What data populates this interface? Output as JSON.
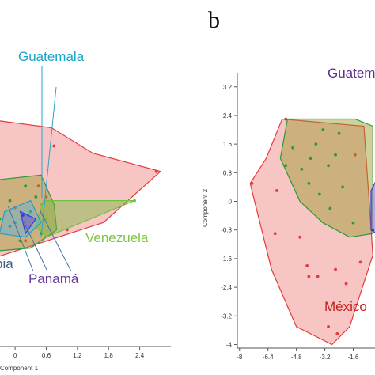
{
  "chart_data": [
    {
      "type": "scatter",
      "xlabel": "Component 1",
      "xticks": [
        "0",
        "0.6",
        "1.2",
        "1.8",
        "2.4"
      ],
      "xtick_values": [
        0,
        0.6,
        1.2,
        1.8,
        2.4
      ],
      "xlim": [
        -0.9,
        3.0
      ],
      "ylim": [
        -4.0,
        4.2
      ],
      "labels": [
        {
          "text": "Guatemala",
          "color": "#1aa3c9"
        },
        {
          "text": "Venezuela",
          "color": "#7fc441"
        },
        {
          "text": "Panamá",
          "color": "#6a3aa0"
        },
        {
          "text": "bia",
          "color": "#3d5a8a"
        }
      ],
      "series": [
        {
          "color": "#e33b3b",
          "fill": "rgba(235,90,90,0.35)",
          "hull": [
            [
              -0.9,
              2.3
            ],
            [
              0.7,
              2.0
            ],
            [
              1.5,
              1.3
            ],
            [
              2.8,
              0.8
            ],
            [
              1.7,
              -0.6
            ],
            [
              -0.9,
              -1.8
            ]
          ],
          "points": [
            [
              0.45,
              0.4
            ],
            [
              0.0,
              -0.2
            ],
            [
              0.6,
              -0.5
            ],
            [
              1.0,
              -0.8
            ],
            [
              -0.5,
              -0.9
            ],
            [
              0.2,
              -1.1
            ],
            [
              0.75,
              1.5
            ],
            [
              0.6,
              0.1
            ],
            [
              2.72,
              0.8
            ],
            [
              -0.7,
              0.0
            ]
          ]
        },
        {
          "color": "#2a9a3a",
          "fill": "rgba(150,150,40,0.45)",
          "hull": [
            [
              -0.8,
              0.5
            ],
            [
              0.5,
              0.7
            ],
            [
              0.75,
              -0.1
            ],
            [
              0.8,
              -0.8
            ],
            [
              0.3,
              -1.3
            ],
            [
              -0.5,
              -1.4
            ],
            [
              -0.9,
              -1.0
            ]
          ],
          "points": [
            [
              -0.1,
              0.0
            ],
            [
              0.2,
              0.4
            ],
            [
              -0.6,
              -0.2
            ],
            [
              0.0,
              -0.6
            ],
            [
              0.3,
              -0.3
            ],
            [
              0.5,
              -0.9
            ],
            [
              -0.3,
              -0.5
            ],
            [
              0.1,
              -1.1
            ],
            [
              -0.7,
              -0.7
            ],
            [
              0.4,
              0.1
            ]
          ]
        },
        {
          "color": "#6fc13f",
          "fill": "rgba(120,185,60,0.45)",
          "hull": [
            [
              0.55,
              0.0
            ],
            [
              2.3,
              0.0
            ],
            [
              0.6,
              -1.0
            ],
            [
              0.4,
              -0.7
            ]
          ],
          "points": [
            [
              2.3,
              0.0
            ],
            [
              0.6,
              -0.5
            ],
            [
              0.5,
              -0.1
            ]
          ]
        },
        {
          "color": "#1fa0c8",
          "fill": "rgba(90,180,220,0.45)",
          "hull": [
            [
              -0.2,
              -0.3
            ],
            [
              0.3,
              0.0
            ],
            [
              0.5,
              -0.6
            ],
            [
              0.2,
              -1.0
            ],
            [
              -0.3,
              -0.9
            ]
          ],
          "points": [
            [
              0.25,
              -0.4
            ],
            [
              -0.1,
              -0.7
            ]
          ]
        },
        {
          "color": "#3b3bd1",
          "fill": "rgba(110,80,200,0.5)",
          "hull": [
            [
              0.1,
              -0.3
            ],
            [
              0.4,
              -0.5
            ],
            [
              0.2,
              -0.9
            ]
          ],
          "points": [
            [
              0.15,
              -0.4
            ]
          ]
        }
      ]
    },
    {
      "type": "scatter",
      "panel_label": "b",
      "xlabel": "",
      "ylabel": "Component 2",
      "xticks": [
        "-8",
        "-6.4",
        "-4.8",
        "-3.2",
        "-1.6"
      ],
      "xtick_values": [
        -8,
        -6.4,
        -4.8,
        -3.2,
        -1.6
      ],
      "yticks": [
        "3.2",
        "2.4",
        "1.6",
        "0.8",
        "0",
        "-0.8",
        "-1.6",
        "-2.4",
        "-3.2",
        "-4"
      ],
      "ytick_values": [
        3.2,
        2.4,
        1.6,
        0.8,
        0,
        -0.8,
        -1.6,
        -2.4,
        -3.2,
        -4
      ],
      "xlim": [
        -8.3,
        -0.2
      ],
      "ylim": [
        -4.1,
        4.3
      ],
      "labels": [
        {
          "text": "Guatem",
          "color": "#5b2d90"
        },
        {
          "text": "México",
          "color": "#c0201d"
        }
      ],
      "series": [
        {
          "color": "#e33b3b",
          "fill": "rgba(235,90,90,0.35)",
          "hull": [
            [
              -7.4,
              0.5
            ],
            [
              -6.5,
              1.2
            ],
            [
              -5.6,
              2.3
            ],
            [
              -1.0,
              2.1
            ],
            [
              -0.5,
              -1.5
            ],
            [
              -1.8,
              -3.5
            ],
            [
              -2.8,
              -4.0
            ],
            [
              -4.8,
              -3.5
            ],
            [
              -6.2,
              -1.9
            ]
          ],
          "points": [
            [
              -5.4,
              2.3
            ],
            [
              -5.9,
              0.3
            ],
            [
              -6.0,
              -0.9
            ],
            [
              -4.6,
              -1.0
            ],
            [
              -3.6,
              -2.1
            ],
            [
              -2.6,
              -1.9
            ],
            [
              -3.0,
              -3.5
            ],
            [
              -4.2,
              -1.8
            ],
            [
              -2.0,
              -2.3
            ],
            [
              -1.5,
              1.3
            ],
            [
              -1.2,
              -1.7
            ],
            [
              -7.3,
              0.5
            ],
            [
              -4.1,
              -2.1
            ],
            [
              -2.5,
              -3.7
            ]
          ]
        },
        {
          "color": "#2a9a3a",
          "fill": "rgba(150,150,40,0.45)",
          "hull": [
            [
              -5.7,
              1.2
            ],
            [
              -5.3,
              2.3
            ],
            [
              -1.5,
              2.3
            ],
            [
              -0.5,
              2.1
            ],
            [
              -0.5,
              -0.9
            ],
            [
              -1.8,
              -1.0
            ],
            [
              -3.3,
              -0.6
            ],
            [
              -4.6,
              0.0
            ]
          ],
          "points": [
            [
              -5.0,
              1.5
            ],
            [
              -4.5,
              0.9
            ],
            [
              -3.7,
              1.6
            ],
            [
              -3.0,
              1.0
            ],
            [
              -4.1,
              0.5
            ],
            [
              -2.6,
              1.3
            ],
            [
              -3.5,
              0.2
            ],
            [
              -2.2,
              0.4
            ],
            [
              -2.9,
              -0.2
            ],
            [
              -5.4,
              1.0
            ],
            [
              -1.6,
              -0.6
            ],
            [
              -4.0,
              1.2
            ],
            [
              -2.4,
              1.9
            ],
            [
              -3.3,
              2.0
            ]
          ]
        },
        {
          "color": "#3b3bd1",
          "fill": "rgba(110,80,200,0.5)",
          "hull": [
            [
              -0.6,
              0.3
            ],
            [
              -0.3,
              0.6
            ],
            [
              -0.3,
              -0.9
            ],
            [
              -0.6,
              -0.8
            ]
          ],
          "points": [
            [
              -0.5,
              -0.8
            ]
          ]
        }
      ]
    }
  ]
}
